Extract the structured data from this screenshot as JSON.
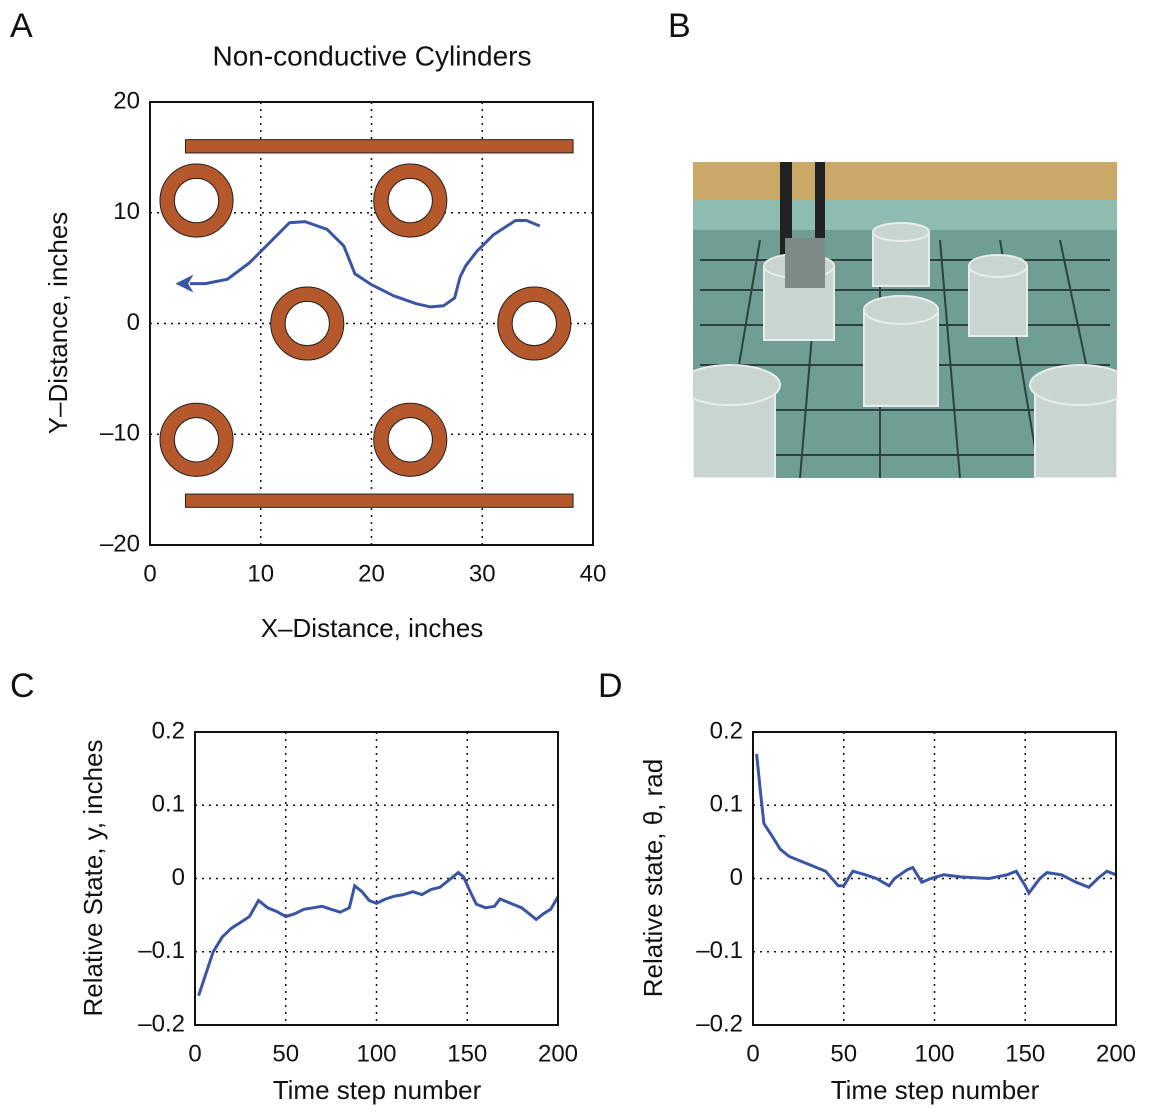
{
  "panel_labels": [
    "A",
    "B",
    "C",
    "D"
  ],
  "chart_data": [
    {
      "type": "line",
      "title": "Non-conductive Cylinders",
      "xlabel": "X–Distance, inches",
      "ylabel": "Y–Distance, inches",
      "xlim": [
        0,
        40
      ],
      "ylim": [
        -20,
        20
      ],
      "xticks": [
        0,
        10,
        20,
        30,
        40
      ],
      "yticks": [
        {
          "value": -20,
          "label": "–20"
        },
        {
          "value": -10,
          "label": "–10"
        },
        0,
        10,
        20
      ],
      "grid": true,
      "color": "#3a55a4",
      "x": [
        3.6,
        5,
        7,
        9,
        11,
        12.6,
        14,
        16,
        17.5,
        18.5,
        20,
        22,
        24,
        25.3,
        26.5,
        27.5,
        28,
        28.5,
        29.5,
        31,
        33,
        34,
        35.2
      ],
      "values": [
        3.6,
        3.6,
        4,
        5.5,
        7.5,
        9.1,
        9.2,
        8.5,
        7,
        4.5,
        3.5,
        2.5,
        1.8,
        1.5,
        1.6,
        2.3,
        4.2,
        5.2,
        6.5,
        8,
        9.3,
        9.3,
        8.8
      ],
      "obstacle_color": "#b5582c",
      "cylinders": {
        "x": [
          4.2,
          23.5,
          14.2,
          34.7,
          4.2,
          23.5
        ],
        "y": [
          11.1,
          11.1,
          0,
          0,
          -10.5,
          -10.5
        ],
        "outer_radius": 3.3,
        "inner_radius": 2
      },
      "walls": {
        "x_start": [
          3.2,
          3.2
        ],
        "x_end": [
          38.2,
          38.2
        ],
        "y": [
          16,
          -16
        ],
        "thickness": 1.2
      }
    },
    {
      "type": "line",
      "xlabel": "Time step number",
      "ylabel": "Relative State, y, inches",
      "xlim": [
        0,
        200
      ],
      "ylim": [
        -0.2,
        0.2
      ],
      "xticks": [
        0,
        50,
        100,
        150,
        200
      ],
      "yticks": [
        {
          "value": -0.2,
          "label": "–0.2"
        },
        {
          "value": -0.1,
          "label": "–0.1"
        },
        0,
        0.1,
        0.2
      ],
      "grid": true,
      "color": "#3a55a4",
      "x": [
        2,
        6,
        10,
        15,
        20,
        25,
        30,
        35,
        40,
        45,
        50,
        55,
        60,
        65,
        70,
        75,
        80,
        85,
        88,
        92,
        96,
        100,
        105,
        110,
        115,
        120,
        125,
        130,
        135,
        140,
        145,
        148,
        152,
        155,
        160,
        165,
        168,
        175,
        180,
        185,
        188,
        192,
        196,
        200
      ],
      "values": [
        -0.16,
        -0.13,
        -0.1,
        -0.08,
        -0.068,
        -0.06,
        -0.052,
        -0.03,
        -0.04,
        -0.045,
        -0.052,
        -0.048,
        -0.042,
        -0.04,
        -0.038,
        -0.042,
        -0.046,
        -0.04,
        -0.01,
        -0.018,
        -0.03,
        -0.034,
        -0.028,
        -0.024,
        -0.022,
        -0.018,
        -0.022,
        -0.015,
        -0.012,
        -0.002,
        0.008,
        0.002,
        -0.02,
        -0.035,
        -0.04,
        -0.038,
        -0.028,
        -0.035,
        -0.04,
        -0.05,
        -0.056,
        -0.048,
        -0.042,
        -0.025
      ]
    },
    {
      "type": "line",
      "xlabel": "Time step number",
      "ylabel": "Relative state, θ, rad",
      "xlim": [
        0,
        200
      ],
      "ylim": [
        -0.2,
        0.2
      ],
      "xticks": [
        0,
        50,
        100,
        150,
        200
      ],
      "yticks": [
        {
          "value": -0.2,
          "label": "–0.2"
        },
        {
          "value": -0.1,
          "label": "–0.1"
        },
        0,
        0.1,
        0.2
      ],
      "grid": true,
      "color": "#3a55a4",
      "x": [
        2,
        4,
        6,
        10,
        15,
        20,
        30,
        40,
        47,
        50,
        55,
        62,
        68,
        75,
        78,
        85,
        88,
        93,
        98,
        105,
        115,
        130,
        140,
        145,
        150,
        152,
        158,
        162,
        170,
        178,
        185,
        190,
        195,
        200
      ],
      "values": [
        0.17,
        0.12,
        0.075,
        0.06,
        0.04,
        0.03,
        0.02,
        0.01,
        -0.01,
        -0.01,
        0.01,
        0.005,
        0,
        -0.01,
        0,
        0.012,
        0.015,
        -0.005,
        0,
        0.005,
        0.002,
        0,
        0.005,
        0.01,
        -0.01,
        -0.02,
        0,
        0.008,
        0.005,
        -0.005,
        -0.012,
        0,
        0.01,
        0.005
      ]
    }
  ]
}
